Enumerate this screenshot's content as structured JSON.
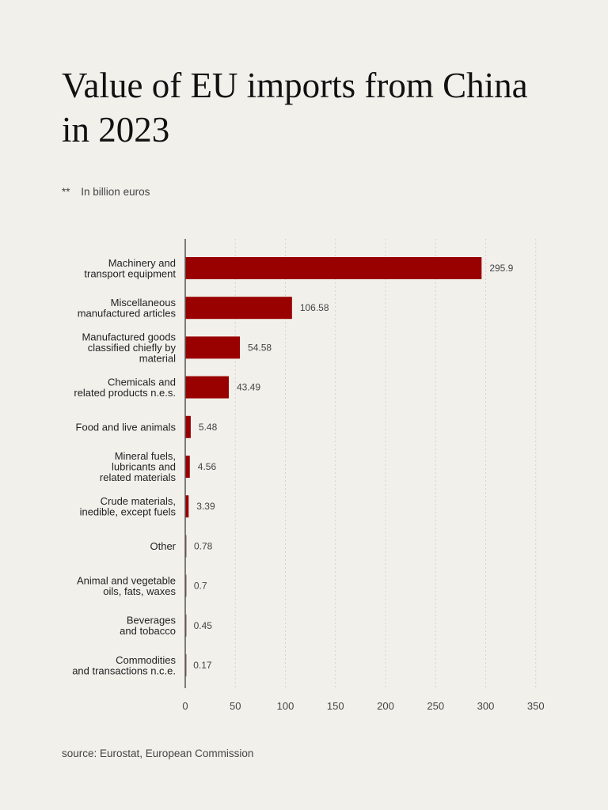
{
  "title": "Value of EU imports from China in 2023",
  "subtitle": {
    "mark": "**",
    "text": "In billion euros"
  },
  "source": "source: Eurostat, European Commission",
  "colors": {
    "bar": "#990000",
    "background": "#f2f0eb"
  },
  "chart_data": {
    "type": "bar",
    "orientation": "horizontal",
    "title": "Value of EU imports from China in 2023",
    "xlabel": "",
    "ylabel": "",
    "unit": "billion euros",
    "xlim": [
      0,
      350
    ],
    "xticks": [
      0,
      50,
      100,
      150,
      200,
      250,
      300,
      350
    ],
    "grid": true,
    "categories": [
      [
        "Machinery and",
        "transport equipment"
      ],
      [
        "Miscellaneous",
        "manufactured articles"
      ],
      [
        "Manufactured goods",
        "classified chiefly by",
        "material"
      ],
      [
        "Chemicals and",
        "related products n.e.s."
      ],
      [
        "Food and live animals"
      ],
      [
        "Mineral fuels,",
        "lubricants and",
        "related materials"
      ],
      [
        "Crude materials,",
        "inedible, except fuels"
      ],
      [
        "Other"
      ],
      [
        "Animal and vegetable",
        "oils, fats, waxes"
      ],
      [
        "Beverages",
        "and tobacco"
      ],
      [
        "Commodities",
        "and transactions n.c.e."
      ]
    ],
    "values": [
      295.9,
      106.58,
      54.58,
      43.49,
      5.48,
      4.56,
      3.39,
      0.78,
      0.7,
      0.45,
      0.17
    ],
    "value_labels": [
      "295.9",
      "106.58",
      "54.58",
      "43.49",
      "5.48",
      "4.56",
      "3.39",
      "0.78",
      "0.7",
      "0.45",
      "0.17"
    ]
  }
}
